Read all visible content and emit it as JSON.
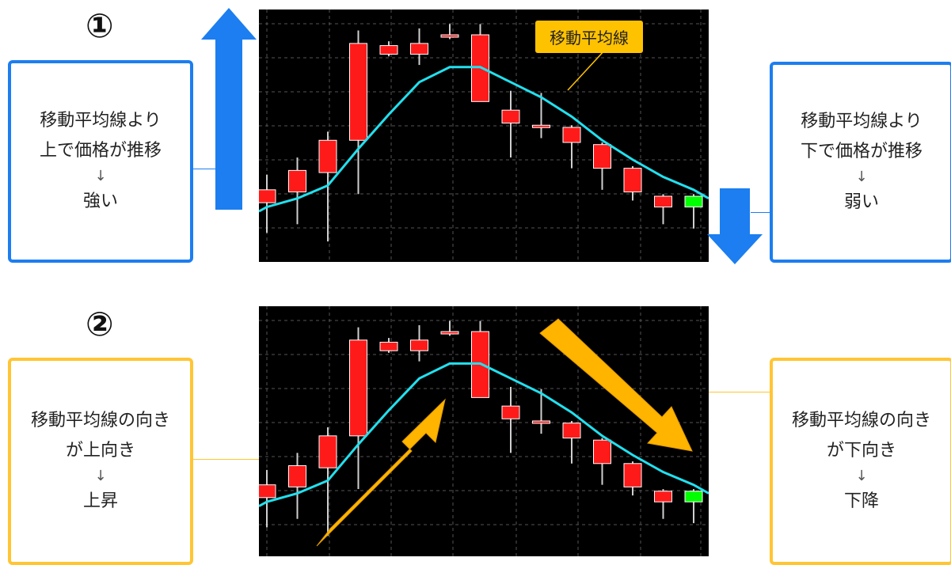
{
  "panel1": {
    "number": "①",
    "left_box": {
      "line1": "移動平均線より",
      "line2": "上で価格が推移",
      "arrow": "↓",
      "result": "強い"
    },
    "right_box": {
      "line1": "移動平均線より",
      "line2": "下で価格が推移",
      "arrow": "↓",
      "result": "弱い"
    },
    "ma_tag": "移動平均線"
  },
  "panel2": {
    "number": "②",
    "left_box": {
      "line1": "移動平均線の向き",
      "line2": "が上向き",
      "arrow": "↓",
      "result": "上昇"
    },
    "right_box": {
      "line1": "移動平均線の向き",
      "line2": "が下向き",
      "arrow": "↓",
      "result": "下降"
    }
  },
  "colors": {
    "blue": "#1c7ef0",
    "orange": "#ffc533",
    "up_candle": "#00ff00",
    "down_candle": "#ff1a1a",
    "ma_line": "#22e0ee"
  },
  "chart_data": {
    "type": "candlestick",
    "candles": [
      {
        "o": 0.28,
        "c": 0.22,
        "h": 0.35,
        "l": 0.08
      },
      {
        "o": 0.37,
        "c": 0.27,
        "h": 0.43,
        "l": 0.12
      },
      {
        "o": 0.51,
        "c": 0.36,
        "h": 0.55,
        "l": 0.04
      },
      {
        "o": 0.96,
        "c": 0.51,
        "h": 1.02,
        "l": 0.26
      },
      {
        "o": 0.95,
        "c": 0.91,
        "h": 0.97,
        "l": 0.9
      },
      {
        "o": 0.96,
        "c": 0.91,
        "h": 1.03,
        "l": 0.86
      },
      {
        "o": 1.0,
        "c": 0.99,
        "h": 1.05,
        "l": 0.98
      },
      {
        "o": 1.0,
        "c": 0.69,
        "h": 1.05,
        "l": 0.69
      },
      {
        "o": 0.65,
        "c": 0.59,
        "h": 0.74,
        "l": 0.43
      },
      {
        "o": 0.58,
        "c": 0.57,
        "h": 0.73,
        "l": 0.52
      },
      {
        "o": 0.57,
        "c": 0.5,
        "h": 0.58,
        "l": 0.38
      },
      {
        "o": 0.49,
        "c": 0.38,
        "h": 0.5,
        "l": 0.28
      },
      {
        "o": 0.38,
        "c": 0.27,
        "h": 0.39,
        "l": 0.23
      },
      {
        "o": 0.25,
        "c": 0.2,
        "h": 0.26,
        "l": 0.12
      },
      {
        "o": 0.2,
        "c": 0.25,
        "h": 0.26,
        "l": 0.1
      }
    ],
    "ma": [
      0.2,
      0.24,
      0.3,
      0.47,
      0.63,
      0.78,
      0.85,
      0.85,
      0.78,
      0.71,
      0.62,
      0.51,
      0.42,
      0.34,
      0.28
    ]
  }
}
